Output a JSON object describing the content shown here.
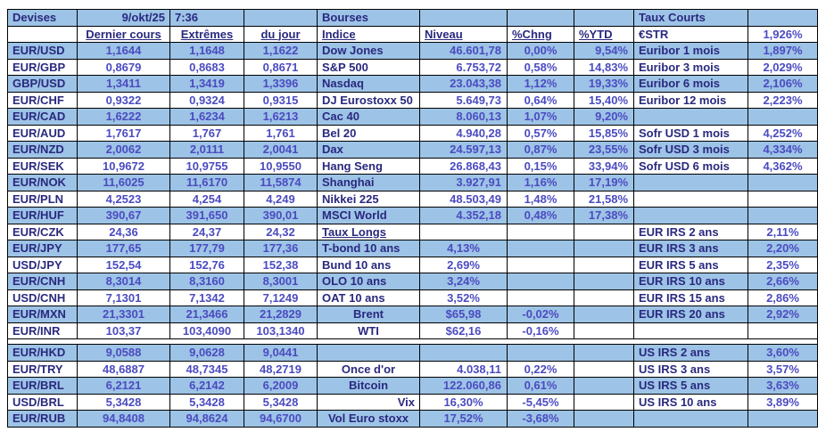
{
  "colors": {
    "row_blue": "#9DC3E6",
    "label_text": "#29297F",
    "value_text": "#4B4BC1",
    "border": "#000000",
    "background": "#FFFFFF"
  },
  "table": {
    "rows": [
      {
        "bg": "b",
        "cells": [
          {
            "t": "Devises",
            "s": "t"
          },
          {
            "t": "9/okt/25",
            "s": "hr"
          },
          {
            "t": "7:36",
            "s": "hl"
          },
          null,
          {
            "t": "Bourses",
            "s": "t"
          },
          null,
          null,
          null,
          {
            "t": "Taux Courts",
            "s": "t"
          },
          null
        ]
      },
      {
        "bg": "w",
        "cells": [
          null,
          {
            "t": "Dernier cours",
            "s": "hu"
          },
          {
            "t": "Extrêmes",
            "s": "hu"
          },
          {
            "t": "du jour",
            "s": "hu"
          },
          {
            "t": "Indice",
            "s": "hul"
          },
          {
            "t": "Niveau",
            "s": "hul"
          },
          {
            "t": "%Chng",
            "s": "hul"
          },
          {
            "t": "%YTD",
            "s": "hul"
          },
          {
            "t": "€STR",
            "s": "l"
          },
          {
            "t": "1,926%",
            "s": "v"
          }
        ]
      },
      {
        "bg": "b",
        "cells": [
          {
            "t": "EUR/USD",
            "s": "l"
          },
          {
            "t": "1,1644",
            "s": "v"
          },
          {
            "t": "1,1648",
            "s": "v"
          },
          {
            "t": "1,1622",
            "s": "v"
          },
          {
            "t": "Dow Jones",
            "s": "l"
          },
          {
            "t": "46.601,78",
            "s": "vr"
          },
          {
            "t": "0,00%",
            "s": "v"
          },
          {
            "t": "9,54%",
            "s": "vr"
          },
          {
            "t": "Euribor 1 mois",
            "s": "l"
          },
          {
            "t": "1,897%",
            "s": "v"
          }
        ]
      },
      {
        "bg": "w",
        "cells": [
          {
            "t": "EUR/GBP",
            "s": "l"
          },
          {
            "t": "0,8679",
            "s": "v"
          },
          {
            "t": "0,8683",
            "s": "v"
          },
          {
            "t": "0,8671",
            "s": "v"
          },
          {
            "t": "S&P 500",
            "s": "l"
          },
          {
            "t": "6.753,72",
            "s": "vr"
          },
          {
            "t": "0,58%",
            "s": "v"
          },
          {
            "t": "14,83%",
            "s": "vr"
          },
          {
            "t": "Euribor 3 mois",
            "s": "l"
          },
          {
            "t": "2,029%",
            "s": "v"
          }
        ]
      },
      {
        "bg": "b",
        "cells": [
          {
            "t": "GBP/USD",
            "s": "l"
          },
          {
            "t": "1,3411",
            "s": "v"
          },
          {
            "t": "1,3419",
            "s": "v"
          },
          {
            "t": "1,3396",
            "s": "v"
          },
          {
            "t": "Nasdaq",
            "s": "l"
          },
          {
            "t": "23.043,38",
            "s": "vr"
          },
          {
            "t": "1,12%",
            "s": "v"
          },
          {
            "t": "19,33%",
            "s": "vr"
          },
          {
            "t": "Euribor 6 mois",
            "s": "l"
          },
          {
            "t": "2,106%",
            "s": "v"
          }
        ]
      },
      {
        "bg": "w",
        "cells": [
          {
            "t": "EUR/CHF",
            "s": "l"
          },
          {
            "t": "0,9322",
            "s": "v"
          },
          {
            "t": "0,9324",
            "s": "v"
          },
          {
            "t": "0,9315",
            "s": "v"
          },
          {
            "t": "DJ Eurostoxx 50",
            "s": "l"
          },
          {
            "t": "5.649,73",
            "s": "vr"
          },
          {
            "t": "0,64%",
            "s": "v"
          },
          {
            "t": "15,40%",
            "s": "vr"
          },
          {
            "t": "Euribor 12 mois",
            "s": "l"
          },
          {
            "t": "2,223%",
            "s": "v"
          }
        ]
      },
      {
        "bg": "b",
        "cells": [
          {
            "t": "EUR/CAD",
            "s": "l"
          },
          {
            "t": "1,6222",
            "s": "v"
          },
          {
            "t": "1,6234",
            "s": "v"
          },
          {
            "t": "1,6213",
            "s": "v"
          },
          {
            "t": "Cac 40",
            "s": "l"
          },
          {
            "t": "8.060,13",
            "s": "vr"
          },
          {
            "t": "1,07%",
            "s": "v"
          },
          {
            "t": "9,20%",
            "s": "vr"
          },
          null,
          null
        ]
      },
      {
        "bg": "w",
        "cells": [
          {
            "t": "EUR/AUD",
            "s": "l"
          },
          {
            "t": "1,7617",
            "s": "v"
          },
          {
            "t": "1,767",
            "s": "v"
          },
          {
            "t": "1,761",
            "s": "v"
          },
          {
            "t": "Bel 20",
            "s": "l"
          },
          {
            "t": "4.940,28",
            "s": "vr"
          },
          {
            "t": "0,57%",
            "s": "v"
          },
          {
            "t": "15,85%",
            "s": "vr"
          },
          {
            "t": "Sofr USD 1 mois",
            "s": "l"
          },
          {
            "t": "4,252%",
            "s": "v"
          }
        ]
      },
      {
        "bg": "b",
        "cells": [
          {
            "t": "EUR/NZD",
            "s": "l"
          },
          {
            "t": "2,0062",
            "s": "v"
          },
          {
            "t": "2,0111",
            "s": "v"
          },
          {
            "t": "2,0041",
            "s": "v"
          },
          {
            "t": "Dax",
            "s": "l"
          },
          {
            "t": "24.597,13",
            "s": "vr"
          },
          {
            "t": "0,87%",
            "s": "v"
          },
          {
            "t": "23,55%",
            "s": "vr"
          },
          {
            "t": "Sofr USD 3 mois",
            "s": "l"
          },
          {
            "t": "4,334%",
            "s": "v"
          }
        ]
      },
      {
        "bg": "w",
        "cells": [
          {
            "t": "EUR/SEK",
            "s": "l"
          },
          {
            "t": "10,9672",
            "s": "v"
          },
          {
            "t": "10,9755",
            "s": "v"
          },
          {
            "t": "10,9550",
            "s": "v"
          },
          {
            "t": "Hang Seng",
            "s": "l"
          },
          {
            "t": "26.868,43",
            "s": "vr"
          },
          {
            "t": "0,15%",
            "s": "v"
          },
          {
            "t": "33,94%",
            "s": "vr"
          },
          {
            "t": "Sofr USD 6 mois",
            "s": "l"
          },
          {
            "t": "4,362%",
            "s": "v"
          }
        ]
      },
      {
        "bg": "b",
        "cells": [
          {
            "t": "EUR/NOK",
            "s": "l"
          },
          {
            "t": "11,6025",
            "s": "v"
          },
          {
            "t": "11,6170",
            "s": "v"
          },
          {
            "t": "11,5874",
            "s": "v"
          },
          {
            "t": "Shanghai",
            "s": "l"
          },
          {
            "t": "3.927,91",
            "s": "vr"
          },
          {
            "t": "1,16%",
            "s": "v"
          },
          {
            "t": "17,19%",
            "s": "vr"
          },
          null,
          null
        ]
      },
      {
        "bg": "w",
        "cells": [
          {
            "t": "EUR/PLN",
            "s": "l"
          },
          {
            "t": "4,2523",
            "s": "v"
          },
          {
            "t": "4,254",
            "s": "v"
          },
          {
            "t": "4,249",
            "s": "v"
          },
          {
            "t": "Nikkei 225",
            "s": "l"
          },
          {
            "t": "48.503,49",
            "s": "vr"
          },
          {
            "t": "1,48%",
            "s": "v"
          },
          {
            "t": "21,58%",
            "s": "vr"
          },
          null,
          null
        ]
      },
      {
        "bg": "b",
        "cells": [
          {
            "t": "EUR/HUF",
            "s": "l"
          },
          {
            "t": "390,67",
            "s": "v"
          },
          {
            "t": "391,650",
            "s": "v"
          },
          {
            "t": "390,01",
            "s": "v"
          },
          {
            "t": "MSCI World",
            "s": "l"
          },
          {
            "t": "4.352,18",
            "s": "vr"
          },
          {
            "t": "0,48%",
            "s": "v"
          },
          {
            "t": "17,38%",
            "s": "vr"
          },
          null,
          null
        ]
      },
      {
        "bg": "w",
        "cells": [
          {
            "t": "EUR/CZK",
            "s": "l"
          },
          {
            "t": "24,36",
            "s": "v"
          },
          {
            "t": "24,37",
            "s": "v"
          },
          {
            "t": "24,32",
            "s": "v"
          },
          {
            "t": "Taux Longs",
            "s": "hul"
          },
          null,
          null,
          null,
          {
            "t": "EUR IRS 2 ans",
            "s": "l"
          },
          {
            "t": "2,11%",
            "s": "v"
          }
        ]
      },
      {
        "bg": "b",
        "cells": [
          {
            "t": "EUR/JPY",
            "s": "l"
          },
          {
            "t": "177,65",
            "s": "v"
          },
          {
            "t": "177,79",
            "s": "v"
          },
          {
            "t": "177,36",
            "s": "v"
          },
          {
            "t": "T-bond 10 ans",
            "s": "l"
          },
          {
            "t": "4,13%",
            "s": "v"
          },
          null,
          null,
          {
            "t": "EUR IRS 3 ans",
            "s": "l"
          },
          {
            "t": "2,20%",
            "s": "v"
          }
        ]
      },
      {
        "bg": "w",
        "cells": [
          {
            "t": "USD/JPY",
            "s": "l"
          },
          {
            "t": "152,54",
            "s": "v"
          },
          {
            "t": "152,76",
            "s": "v"
          },
          {
            "t": "152,38",
            "s": "v"
          },
          {
            "t": "Bund 10 ans",
            "s": "l"
          },
          {
            "t": "2,69%",
            "s": "v"
          },
          null,
          null,
          {
            "t": "EUR IRS 5 ans",
            "s": "l"
          },
          {
            "t": "2,35%",
            "s": "v"
          }
        ]
      },
      {
        "bg": "b",
        "cells": [
          {
            "t": "EUR/CNH",
            "s": "l"
          },
          {
            "t": "8,3014",
            "s": "v"
          },
          {
            "t": "8,3160",
            "s": "v"
          },
          {
            "t": "8,3001",
            "s": "v"
          },
          {
            "t": "OLO 10 ans",
            "s": "l"
          },
          {
            "t": "3,24%",
            "s": "v"
          },
          null,
          null,
          {
            "t": "EUR IRS 10 ans",
            "s": "l"
          },
          {
            "t": "2,66%",
            "s": "v"
          }
        ]
      },
      {
        "bg": "w",
        "cells": [
          {
            "t": "USD/CNH",
            "s": "l"
          },
          {
            "t": "7,1301",
            "s": "v"
          },
          {
            "t": "7,1342",
            "s": "v"
          },
          {
            "t": "7,1249",
            "s": "v"
          },
          {
            "t": "OAT 10 ans",
            "s": "l"
          },
          {
            "t": "3,52%",
            "s": "v"
          },
          null,
          null,
          {
            "t": "EUR IRS 15 ans",
            "s": "l"
          },
          {
            "t": "2,86%",
            "s": "v"
          }
        ]
      },
      {
        "bg": "b",
        "cells": [
          {
            "t": "EUR/MXN",
            "s": "l"
          },
          {
            "t": "21,3301",
            "s": "v"
          },
          {
            "t": "21,3466",
            "s": "v"
          },
          {
            "t": "21,2829",
            "s": "v"
          },
          {
            "t": "Brent",
            "s": "lc"
          },
          {
            "t": "$65,98",
            "s": "v"
          },
          {
            "t": "-0,02%",
            "s": "v"
          },
          null,
          {
            "t": "EUR IRS 20 ans",
            "s": "l"
          },
          {
            "t": "2,92%",
            "s": "v"
          }
        ]
      },
      {
        "bg": "w",
        "cells": [
          {
            "t": "EUR/INR",
            "s": "l"
          },
          {
            "t": "103,37",
            "s": "v"
          },
          {
            "t": "103,4090",
            "s": "v"
          },
          {
            "t": "103,1340",
            "s": "v"
          },
          {
            "t": "WTI",
            "s": "lc"
          },
          {
            "t": "$62,16",
            "s": "v"
          },
          {
            "t": "-0,16%",
            "s": "v"
          },
          null,
          null,
          null
        ]
      },
      {
        "bg": "s",
        "cells": []
      },
      {
        "bg": "b",
        "cells": [
          {
            "t": "EUR/HKD",
            "s": "l"
          },
          {
            "t": "9,0588",
            "s": "v"
          },
          {
            "t": "9,0628",
            "s": "v"
          },
          {
            "t": "9,0441",
            "s": "v"
          },
          null,
          null,
          null,
          null,
          {
            "t": "US IRS 2 ans",
            "s": "l"
          },
          {
            "t": "3,60%",
            "s": "v"
          }
        ]
      },
      {
        "bg": "w",
        "cells": [
          {
            "t": "EUR/TRY",
            "s": "l"
          },
          {
            "t": "48,6887",
            "s": "v"
          },
          {
            "t": "48,7345",
            "s": "v"
          },
          {
            "t": "48,2719",
            "s": "v"
          },
          {
            "t": "Once d'or",
            "s": "lc"
          },
          {
            "t": "4.038,11",
            "s": "vr"
          },
          {
            "t": "0,22%",
            "s": "v"
          },
          null,
          {
            "t": "US IRS 3 ans",
            "s": "l"
          },
          {
            "t": "3,57%",
            "s": "v"
          }
        ]
      },
      {
        "bg": "b",
        "cells": [
          {
            "t": "EUR/BRL",
            "s": "l"
          },
          {
            "t": "6,2121",
            "s": "v"
          },
          {
            "t": "6,2142",
            "s": "v"
          },
          {
            "t": "6,2009",
            "s": "v"
          },
          {
            "t": "Bitcoin",
            "s": "lc"
          },
          {
            "t": "122.060,86",
            "s": "vr"
          },
          {
            "t": "0,61%",
            "s": "v"
          },
          null,
          {
            "t": "US IRS 5 ans",
            "s": "l"
          },
          {
            "t": "3,63%",
            "s": "v"
          }
        ]
      },
      {
        "bg": "w",
        "cells": [
          {
            "t": "USD/BRL",
            "s": "l"
          },
          {
            "t": "5,3428",
            "s": "v"
          },
          {
            "t": "5,3428",
            "s": "v"
          },
          {
            "t": "5,3428",
            "s": "v"
          },
          {
            "t": "Vix",
            "s": "lr"
          },
          {
            "t": "16,30%",
            "s": "v"
          },
          {
            "t": "-5,45%",
            "s": "v"
          },
          null,
          {
            "t": "US IRS 10 ans",
            "s": "l"
          },
          {
            "t": "3,89%",
            "s": "v"
          }
        ]
      },
      {
        "bg": "b",
        "cells": [
          {
            "t": "EUR/RUB",
            "s": "l"
          },
          {
            "t": "94,8408",
            "s": "v"
          },
          {
            "t": "94,8624",
            "s": "v"
          },
          {
            "t": "94,6700",
            "s": "v"
          },
          {
            "t": "Vol Euro stoxx",
            "s": "lc"
          },
          {
            "t": "17,52%",
            "s": "v"
          },
          {
            "t": "-3,68%",
            "s": "v"
          },
          null,
          null,
          null
        ]
      }
    ]
  }
}
